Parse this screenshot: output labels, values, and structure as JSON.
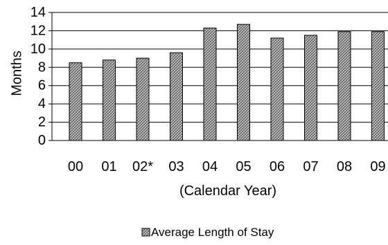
{
  "chart_data": {
    "type": "bar",
    "categories": [
      "00",
      "01",
      "02*",
      "03",
      "04",
      "05",
      "06",
      "07",
      "08",
      "09"
    ],
    "series": [
      {
        "name": "Average Length of Stay",
        "values": [
          8.5,
          8.8,
          9.0,
          9.6,
          12.3,
          12.7,
          11.2,
          11.5,
          11.9,
          11.9
        ]
      }
    ],
    "xlabel": "(Calendar Year)",
    "ylabel": "Months",
    "ylim": [
      0,
      14
    ],
    "yticks": [
      0,
      2,
      4,
      6,
      8,
      10,
      12,
      14
    ],
    "grid": true,
    "legend_position": "bottom",
    "bar_fill": "#a9a9a9",
    "bar_stroke": "#000000"
  }
}
